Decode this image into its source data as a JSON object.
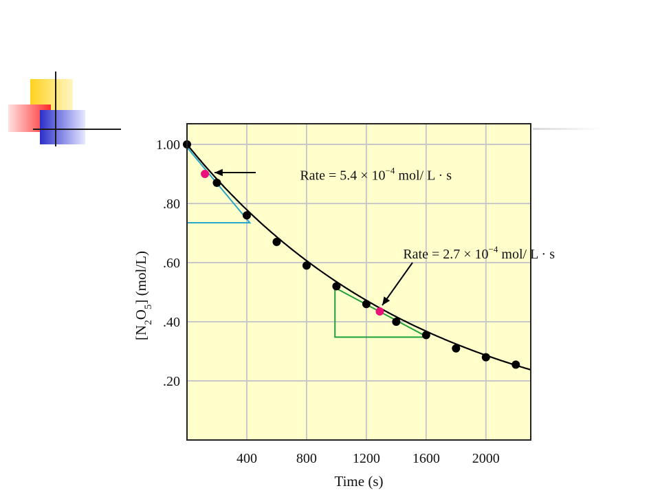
{
  "slide": {
    "decoration": {
      "colors": {
        "yellow": "#FFD700",
        "red": "#FF3B3B",
        "blue": "#2B2FCB",
        "line": "#1a1a1a"
      }
    }
  },
  "chart_data": {
    "type": "scatter",
    "title": "",
    "xlabel": "Time (s)",
    "ylabel_parts": {
      "open": "[N",
      "sub1": "2",
      "mid": "O",
      "sub2": "5",
      "close": "] (mol/L)"
    },
    "xlim": [
      0,
      2300
    ],
    "ylim": [
      0,
      1.0
    ],
    "x_ticks": [
      {
        "value": 400,
        "label": "400"
      },
      {
        "value": 800,
        "label": "800"
      },
      {
        "value": 1200,
        "label": "1200"
      },
      {
        "value": 1600,
        "label": "1600"
      },
      {
        "value": 2000,
        "label": "2000"
      }
    ],
    "y_ticks": [
      {
        "value": 1.0,
        "label": "1.00"
      },
      {
        "value": 0.8,
        "label": ".80"
      },
      {
        "value": 0.6,
        "label": ".60"
      },
      {
        "value": 0.4,
        "label": ".40"
      },
      {
        "value": 0.2,
        "label": ".20"
      }
    ],
    "grid": true,
    "background_color": "#FFFFCC",
    "grid_color": "#C8C8C8",
    "curve_color": "#000000",
    "points": [
      {
        "x": 0,
        "y": 1.0
      },
      {
        "x": 200,
        "y": 0.87
      },
      {
        "x": 400,
        "y": 0.76
      },
      {
        "x": 600,
        "y": 0.67
      },
      {
        "x": 800,
        "y": 0.59
      },
      {
        "x": 1000,
        "y": 0.52
      },
      {
        "x": 1200,
        "y": 0.46
      },
      {
        "x": 1400,
        "y": 0.4
      },
      {
        "x": 1600,
        "y": 0.355
      },
      {
        "x": 1800,
        "y": 0.31
      },
      {
        "x": 2000,
        "y": 0.28
      },
      {
        "x": 2200,
        "y": 0.255
      }
    ],
    "curve": {
      "initial": 1.0,
      "rate_constant": 0.000625,
      "x_end": 2300
    },
    "tangents": [
      {
        "color": "#2AA6C8",
        "point": {
          "x": 120,
          "y": 0.9
        },
        "triangle": {
          "x1": 0,
          "y1": 0.99,
          "x2": 420,
          "y2": 0.735
        },
        "point_color": "#E8147A",
        "label": {
          "prefix": "Rate = 5.4 × 10",
          "exponent": "−4",
          "suffix": " mol/ L · s",
          "anchor": {
            "x": 250,
            "y": 0.897
          }
        }
      },
      {
        "color": "#1FA03A",
        "point": {
          "x": 1290,
          "y": 0.435
        },
        "triangle": {
          "x1": 990,
          "y1": 0.515,
          "x2": 1610,
          "y2": 0.348
        },
        "point_color": "#E8147A",
        "label": {
          "prefix": "Rate = 2.7 × 10",
          "exponent": "−4",
          "suffix": " mol/ L · s",
          "anchor": {
            "x": 940,
            "y": 0.63
          }
        }
      }
    ]
  }
}
